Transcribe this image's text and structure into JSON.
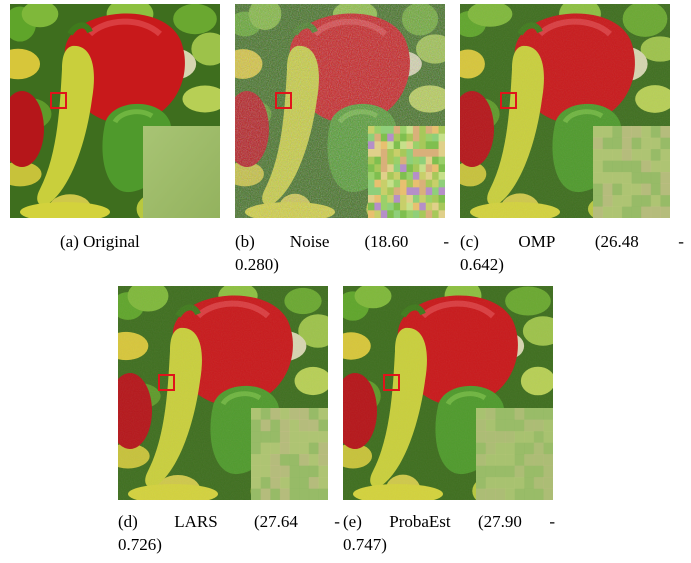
{
  "figure": {
    "panels": [
      {
        "id": "a",
        "caption_tokens": [
          "(a) Original"
        ],
        "caption_line2": "",
        "noise_level": 0,
        "inset_style": "smooth"
      },
      {
        "id": "b",
        "caption_tokens": [
          "(b)",
          "Noise",
          "(18.60",
          "-"
        ],
        "caption_line2": "0.280)",
        "noise_level": 1,
        "inset_style": "noise"
      },
      {
        "id": "c",
        "caption_tokens": [
          "(c)",
          "OMP",
          "(26.48",
          "-"
        ],
        "caption_line2": "0.642)",
        "noise_level": 0.35,
        "inset_style": "blocky"
      },
      {
        "id": "d",
        "caption_tokens": [
          "(d)",
          "LARS",
          "(27.64",
          "-"
        ],
        "caption_line2": "0.726)",
        "noise_level": 0.3,
        "inset_style": "blocky"
      },
      {
        "id": "e",
        "caption_tokens": [
          "(e)",
          "ProbaEst",
          "(27.90",
          "-"
        ],
        "caption_line2": "0.747)",
        "noise_level": 0.25,
        "inset_style": "blocky-soft"
      }
    ],
    "colors": {
      "pepper_red": "#c8191b",
      "pepper_green": "#86b83a",
      "pepper_yellow": "#c9cf3c",
      "highlight_box": "#e0141b",
      "inset_base": "#9fbf6a"
    }
  }
}
